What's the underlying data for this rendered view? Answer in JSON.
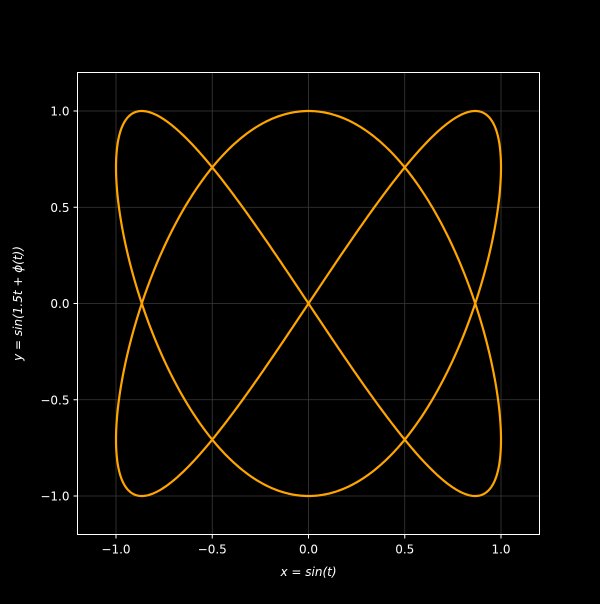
{
  "chart_data": {
    "type": "line",
    "title": "",
    "xlabel": "x = sin(t)",
    "ylabel": "y = sin(1.5t + ϕ(t))",
    "xlim": [
      -1.2,
      1.2
    ],
    "ylim": [
      -1.2,
      1.2
    ],
    "xticks": [
      -1.0,
      -0.5,
      0.0,
      0.5,
      1.0
    ],
    "yticks": [
      -1.0,
      -0.5,
      0.0,
      0.5,
      1.0
    ],
    "xtick_labels": [
      "−1.0",
      "−0.5",
      "0.0",
      "0.5",
      "1.0"
    ],
    "ytick_labels": [
      "−1.0",
      "−0.5",
      "0.0",
      "0.5",
      "1.0"
    ],
    "grid": true,
    "aspect": "equal",
    "curve": {
      "kind": "parametric",
      "x_expr": "sin(t)",
      "y_expr": "sin(1.5t + π/2)",
      "t_range": [
        0,
        12.566
      ],
      "x_freq": 1,
      "y_freq": 1.5,
      "y_phase": 1.5708
    },
    "series": [
      {
        "color": "#ffa500",
        "points": [
          [
            0.0,
            1.0
          ],
          [
            0.259,
            0.924
          ],
          [
            0.5,
            0.707
          ],
          [
            0.707,
            0.383
          ],
          [
            0.866,
            0.0
          ],
          [
            0.966,
            -0.383
          ],
          [
            1.0,
            -0.707
          ],
          [
            0.966,
            -0.924
          ],
          [
            0.866,
            -1.0
          ],
          [
            0.707,
            -0.924
          ],
          [
            0.5,
            -0.707
          ],
          [
            0.259,
            -0.383
          ],
          [
            0.0,
            0.0
          ],
          [
            -0.259,
            0.383
          ],
          [
            -0.5,
            0.707
          ],
          [
            -0.707,
            0.924
          ],
          [
            -0.866,
            1.0
          ],
          [
            -0.966,
            0.924
          ],
          [
            -1.0,
            0.707
          ],
          [
            -0.966,
            0.383
          ],
          [
            -0.866,
            0.0
          ],
          [
            -0.707,
            -0.383
          ],
          [
            -0.5,
            -0.707
          ],
          [
            -0.259,
            -0.924
          ],
          [
            0.0,
            -1.0
          ],
          [
            0.259,
            -0.924
          ],
          [
            0.5,
            -0.707
          ],
          [
            0.707,
            -0.383
          ],
          [
            0.866,
            0.0
          ],
          [
            0.966,
            0.383
          ],
          [
            1.0,
            0.707
          ],
          [
            0.966,
            0.924
          ],
          [
            0.866,
            1.0
          ],
          [
            0.707,
            0.924
          ],
          [
            0.5,
            0.707
          ],
          [
            0.259,
            0.383
          ],
          [
            0.0,
            0.0
          ],
          [
            -0.259,
            -0.383
          ],
          [
            -0.5,
            -0.707
          ],
          [
            -0.707,
            -0.924
          ],
          [
            -0.866,
            -1.0
          ],
          [
            -0.966,
            -0.924
          ],
          [
            -1.0,
            -0.707
          ],
          [
            -0.966,
            -0.383
          ],
          [
            -0.866,
            0.0
          ],
          [
            -0.707,
            0.383
          ],
          [
            -0.5,
            0.707
          ],
          [
            -0.259,
            0.924
          ],
          [
            0.0,
            1.0
          ]
        ]
      }
    ]
  },
  "colors": {
    "background": "#000000",
    "axes_face": "#000000",
    "spine": "#ffffff",
    "grid": "#3a3a3a",
    "text": "#ffffff",
    "line": "#ffa500"
  }
}
